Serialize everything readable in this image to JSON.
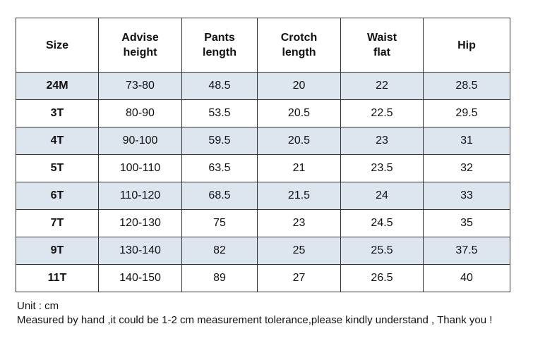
{
  "table": {
    "headers": [
      [
        "Size"
      ],
      [
        "Advise",
        "height"
      ],
      [
        "Pants",
        "length"
      ],
      [
        "Crotch",
        "length"
      ],
      [
        "Waist",
        "flat"
      ],
      [
        "Hip"
      ]
    ],
    "rows": [
      [
        "24M",
        "73-80",
        "48.5",
        "20",
        "22",
        "28.5"
      ],
      [
        "3T",
        "80-90",
        "53.5",
        "20.5",
        "22.5",
        "29.5"
      ],
      [
        "4T",
        "90-100",
        "59.5",
        "20.5",
        "23",
        "31"
      ],
      [
        "5T",
        "100-110",
        "63.5",
        "21",
        "23.5",
        "32"
      ],
      [
        "6T",
        "110-120",
        "68.5",
        "21.5",
        "24",
        "33"
      ],
      [
        "7T",
        "120-130",
        "75",
        "23",
        "24.5",
        "35"
      ],
      [
        "9T",
        "130-140",
        "82",
        "25",
        "25.5",
        "37.5"
      ],
      [
        "11T",
        "140-150",
        "89",
        "27",
        "26.5",
        "40"
      ]
    ],
    "shaded_row_color": "#dde5ef",
    "border_color": "#333333"
  },
  "notes": {
    "unit": "Unit : cm",
    "disclaimer": "Measured by hand ,it could be 1-2 cm measurement tolerance,please kindly understand , Thank you !"
  }
}
